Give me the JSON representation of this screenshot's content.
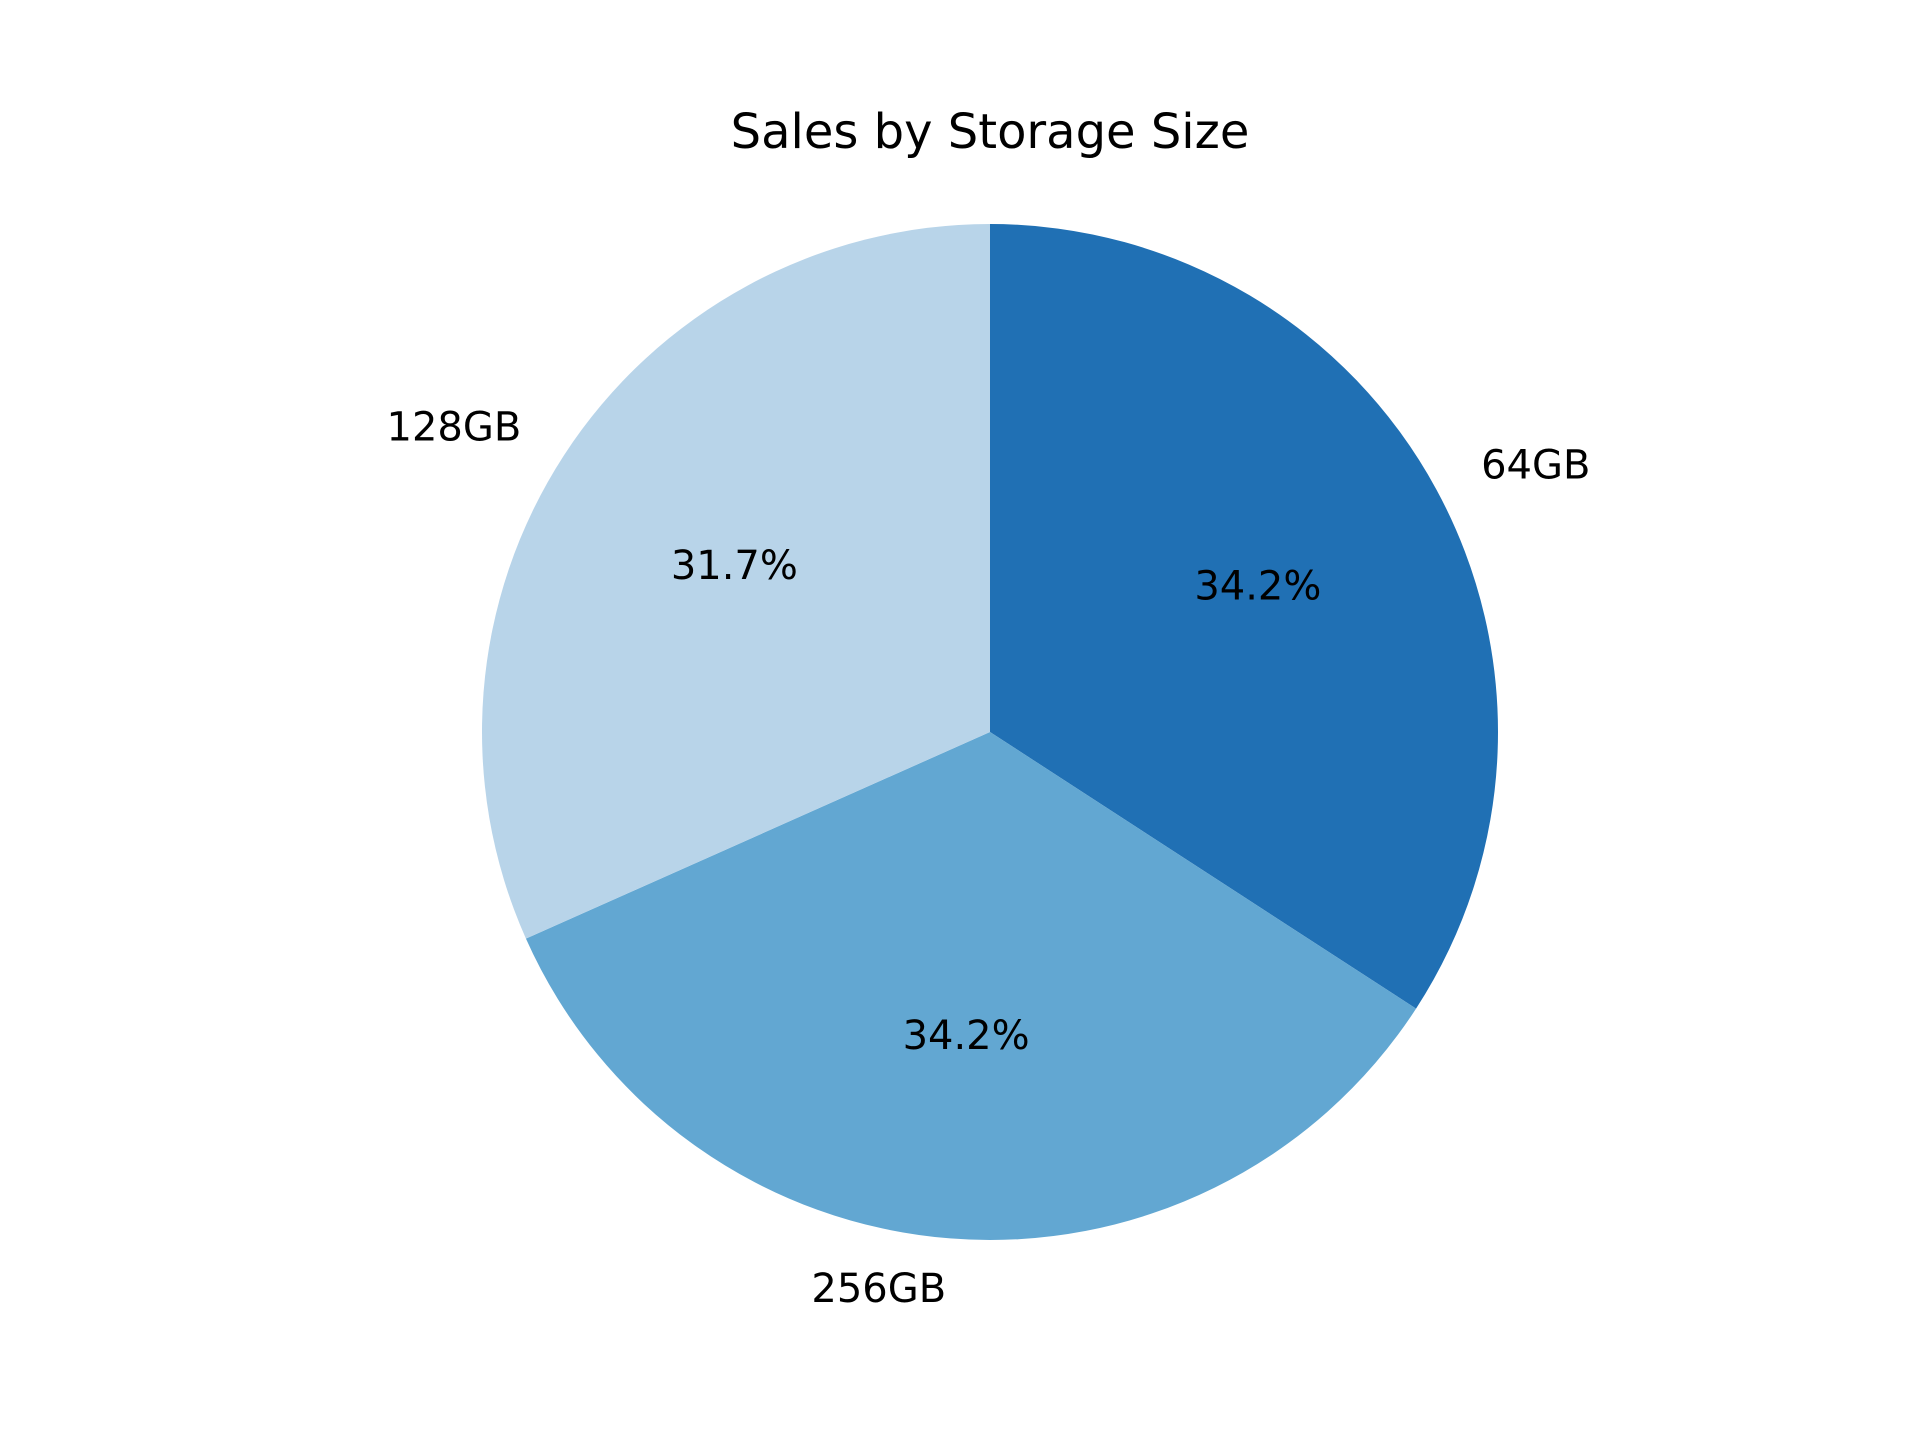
{
  "chart_data": {
    "type": "pie",
    "title": "Sales by Storage Size",
    "slices": [
      {
        "label": "64GB",
        "value": 34.2,
        "pct_label": "34.2%",
        "color": "#2070b4"
      },
      {
        "label": "256GB",
        "value": 34.2,
        "pct_label": "34.2%",
        "color": "#62a7d2"
      },
      {
        "label": "128GB",
        "value": 31.7,
        "pct_label": "31.7%",
        "color": "#b8d4e9"
      }
    ],
    "start_angle": "12 o'clock",
    "direction": "clockwise",
    "legend": false
  }
}
